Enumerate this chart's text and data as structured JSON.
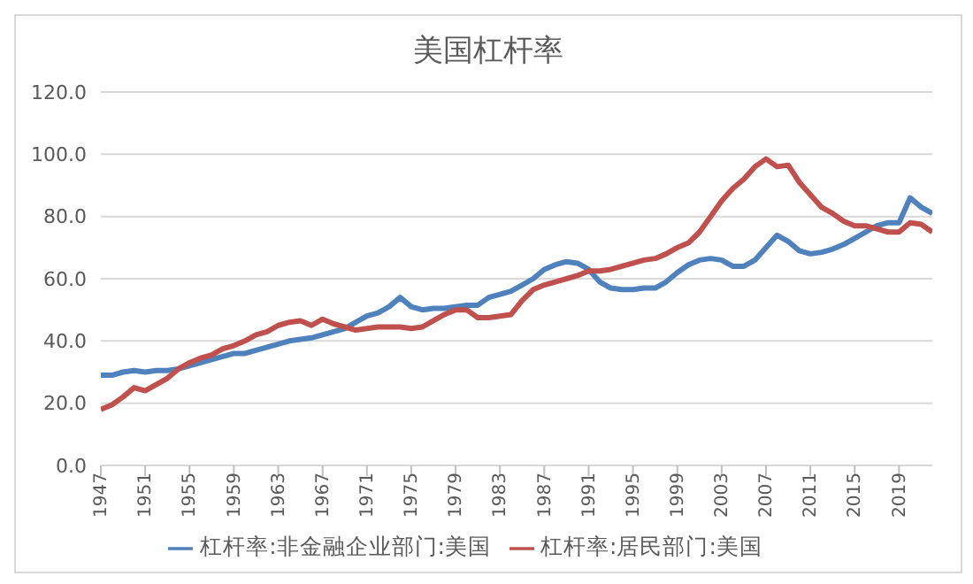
{
  "chart_data": {
    "type": "line",
    "title": "美国杠杆率",
    "x": [
      1947,
      1948,
      1949,
      1950,
      1951,
      1952,
      1953,
      1954,
      1955,
      1956,
      1957,
      1958,
      1959,
      1960,
      1961,
      1962,
      1963,
      1964,
      1965,
      1966,
      1967,
      1968,
      1969,
      1970,
      1971,
      1972,
      1973,
      1974,
      1975,
      1976,
      1977,
      1978,
      1979,
      1980,
      1981,
      1982,
      1983,
      1984,
      1985,
      1986,
      1987,
      1988,
      1989,
      1990,
      1991,
      1992,
      1993,
      1994,
      1995,
      1996,
      1997,
      1998,
      1999,
      2000,
      2001,
      2002,
      2003,
      2004,
      2005,
      2006,
      2007,
      2008,
      2009,
      2010,
      2011,
      2012,
      2013,
      2014,
      2015,
      2016,
      2017,
      2018,
      2019,
      2020,
      2021,
      2022
    ],
    "series": [
      {
        "name": "杠杆率:非金融企业部门:美国",
        "color": "#4f81bd",
        "values": [
          29,
          29,
          30,
          30.5,
          30,
          30.5,
          30.5,
          31,
          32,
          33,
          34,
          35,
          36,
          36,
          37,
          38,
          39,
          40,
          40.5,
          41,
          42,
          43,
          44,
          46,
          48,
          49,
          51,
          54,
          51,
          50,
          50.5,
          50.5,
          51,
          51.5,
          51.5,
          54,
          55,
          56,
          58,
          60,
          63,
          64.5,
          65.5,
          65,
          63,
          59,
          57,
          56.5,
          56.5,
          57,
          57,
          59,
          62,
          64.5,
          66,
          66.5,
          66,
          64,
          64,
          66,
          70,
          74,
          72,
          69,
          68,
          68.5,
          69.5,
          71,
          73,
          75,
          77,
          78,
          78,
          86,
          83,
          81
        ]
      },
      {
        "name": "杠杆率:居民部门:美国",
        "color": "#c0504d",
        "values": [
          18,
          19.5,
          22,
          25,
          24,
          26,
          28,
          31,
          33,
          34.5,
          35.5,
          37.5,
          38.5,
          40,
          42,
          43,
          45,
          46,
          46.5,
          45,
          47,
          45.5,
          44.5,
          43.5,
          44,
          44.5,
          44.5,
          44.5,
          44,
          44.5,
          46.5,
          48.5,
          50,
          50,
          47.5,
          47.5,
          48,
          48.5,
          53,
          56.5,
          58,
          59,
          60,
          61,
          62.5,
          62.5,
          63,
          64,
          65,
          66,
          66.5,
          68,
          70,
          71.5,
          75,
          80,
          85,
          89,
          92,
          96,
          98.5,
          96,
          96.5,
          91,
          87,
          83,
          81,
          78.5,
          77,
          77,
          76,
          75,
          75,
          78,
          77.5,
          75
        ]
      }
    ],
    "xlim": [
      1947,
      2022
    ],
    "xticks": [
      1947,
      1951,
      1955,
      1959,
      1963,
      1967,
      1971,
      1975,
      1979,
      1983,
      1987,
      1991,
      1995,
      1999,
      2003,
      2007,
      2011,
      2015,
      2019
    ],
    "ylim": [
      0,
      120
    ],
    "yticks": [
      {
        "value": 0,
        "label": "0.0"
      },
      {
        "value": 20,
        "label": "20.0"
      },
      {
        "value": 40,
        "label": "40.0"
      },
      {
        "value": 60,
        "label": "60.0"
      },
      {
        "value": 80,
        "label": "80.0"
      },
      {
        "value": 100,
        "label": "100.0"
      },
      {
        "value": 120,
        "label": "120.0"
      }
    ],
    "grid": "y",
    "legend": "bottom",
    "marker": "none",
    "line_style": "solid"
  }
}
